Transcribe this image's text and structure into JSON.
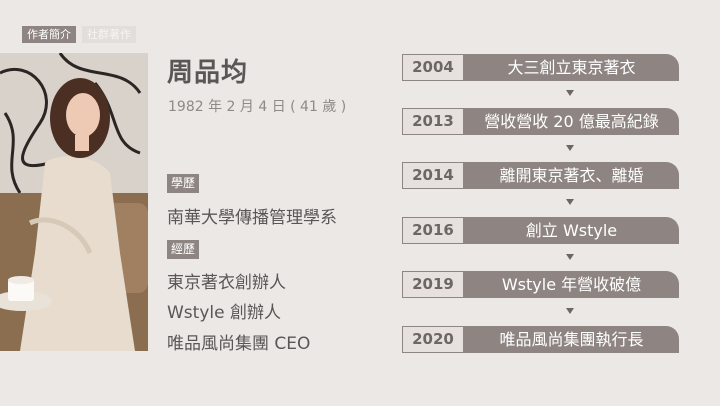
{
  "tabs": [
    {
      "label": "作者簡介",
      "active": true
    },
    {
      "label": "社群著作",
      "active": false
    }
  ],
  "profile": {
    "name": "周品均",
    "birth": "1982 年 2 月 4 日 ( 41 歲 )"
  },
  "education": {
    "heading": "學歷",
    "items": [
      "南華大學傳播管理學系"
    ]
  },
  "experience": {
    "heading": "經歷",
    "items": [
      "東京著衣創辦人",
      "Wstyle 創辦人",
      "唯品風尚集團 CEO"
    ]
  },
  "timeline": [
    {
      "year": "2004",
      "event": "大三創立東京著衣"
    },
    {
      "year": "2013",
      "event": "營收營收 20 億最高紀錄"
    },
    {
      "year": "2014",
      "event": "離開東京著衣、離婚"
    },
    {
      "year": "2016",
      "event": "創立 Wstyle"
    },
    {
      "year": "2019",
      "event": "Wstyle 年營收破億"
    },
    {
      "year": "2020",
      "event": "唯品風尚集團執行長"
    }
  ],
  "colors": {
    "accent": "#8e8582",
    "text": "#5b5656",
    "background": "#ece8e6"
  }
}
